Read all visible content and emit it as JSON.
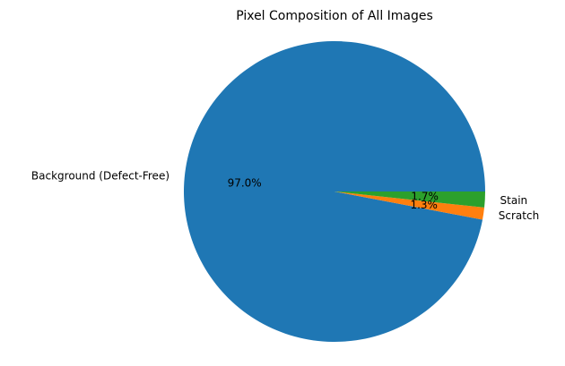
{
  "chart_data": {
    "type": "pie",
    "title": "Pixel Composition of All Images",
    "slices": [
      {
        "label": "Background (Defect-Free)",
        "value": 97.0,
        "pct_label": "97.0%",
        "color": "#1f77b4"
      },
      {
        "label": "Scratch",
        "value": 1.3,
        "pct_label": "1.3%",
        "color": "#ff7f0e"
      },
      {
        "label": "Stain",
        "value": 1.7,
        "pct_label": "1.7%",
        "color": "#2ca02c"
      }
    ],
    "start_angle_deg": 0,
    "direction": "counterclockwise",
    "legend": "none"
  }
}
